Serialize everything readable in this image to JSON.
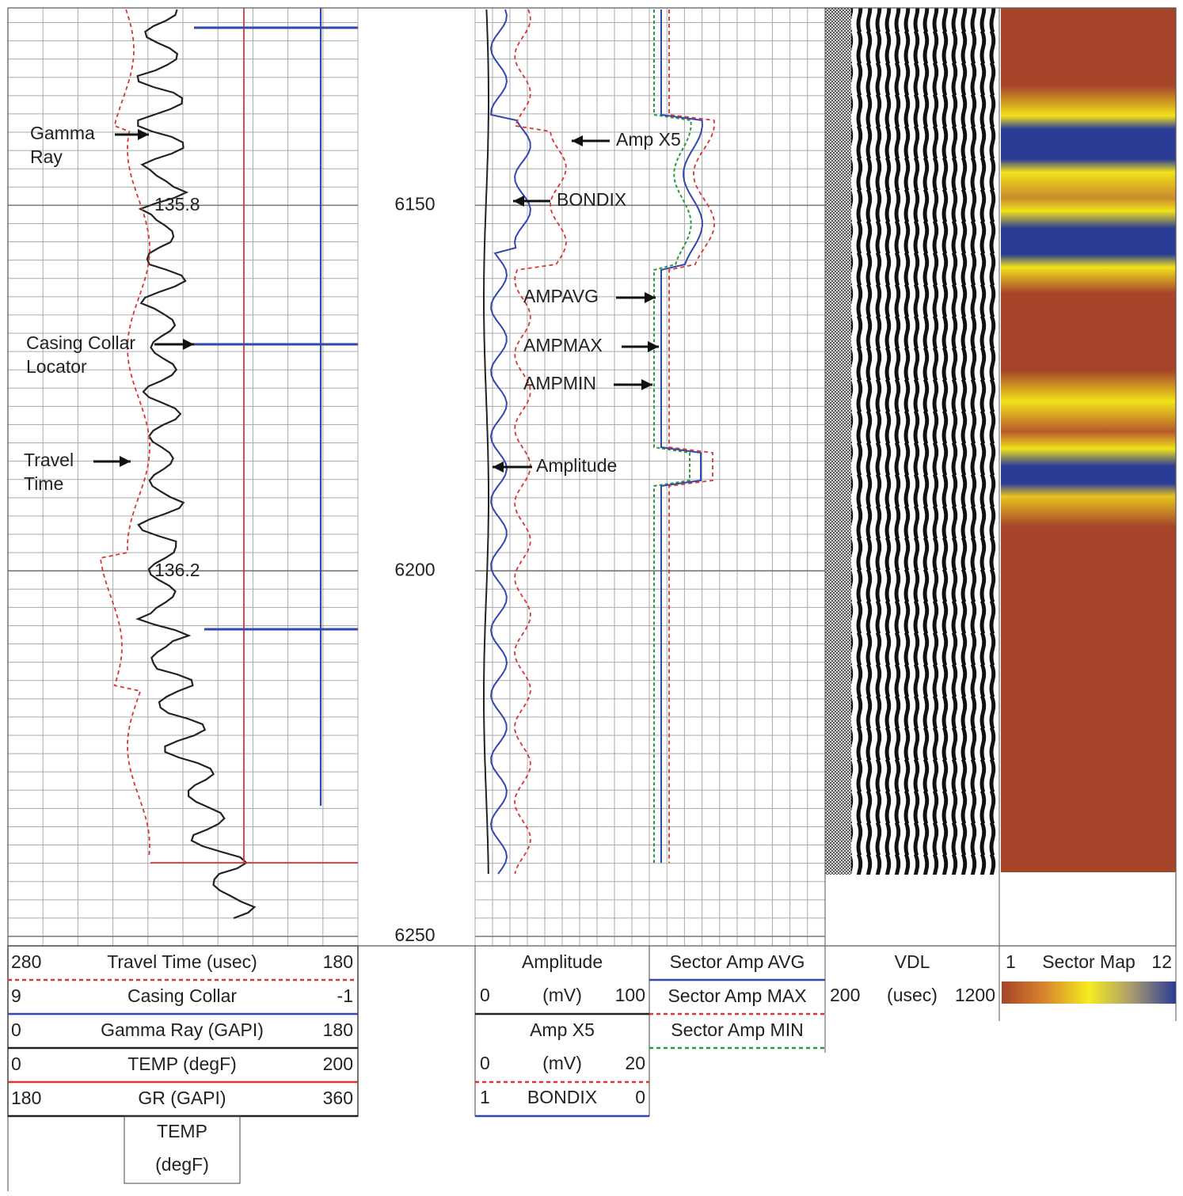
{
  "depth_track": {
    "lim": [
      6123,
      6250
    ],
    "ticks": [
      6150,
      6200,
      6250
    ]
  },
  "annotations": [
    [
      "Gamma",
      "Ray"
    ],
    [
      "Casing Collar",
      "Locator"
    ],
    [
      "Travel",
      "Time"
    ],
    [
      "135.8"
    ],
    [
      "136.2"
    ],
    [
      "Amp X5"
    ],
    [
      "BONDIX"
    ],
    [
      "AMPAVG"
    ],
    [
      "AMPMAX"
    ],
    [
      "AMPMIN"
    ],
    [
      "Amplitude"
    ]
  ],
  "header": {
    "track1": {
      "rows": [
        {
          "left": 280,
          "name": "Travel Time (usec)",
          "right": 180
        },
        {
          "left": 9,
          "name": "Casing Collar",
          "right": -1
        },
        {
          "left": 0,
          "name": "Gamma Ray (GAPI)",
          "right": 180
        },
        {
          "left": 0,
          "name": "TEMP (degF)",
          "right": 200
        },
        {
          "left": 180,
          "name": "GR (GAPI)",
          "right": 360
        }
      ],
      "temp_box": [
        "TEMP",
        "(degF)"
      ]
    },
    "track2": {
      "amplitude": {
        "name": "Amplitude",
        "left": 0,
        "unit": "(mV)",
        "right": 100
      },
      "amp_x5": {
        "name": "Amp X5",
        "left": 0,
        "unit": "(mV)",
        "right": 20
      },
      "bondix": {
        "left": 1,
        "name": "BONDIX",
        "right": 0
      }
    },
    "track3": [
      "Sector Amp AVG",
      "Sector Amp MAX",
      "Sector Amp MIN"
    ],
    "vdl": {
      "name": "VDL",
      "left": 200,
      "unit": "(usec)",
      "right": 1200
    },
    "sector_map": {
      "left": 1,
      "name": "Sector Map",
      "right": 12
    }
  }
}
